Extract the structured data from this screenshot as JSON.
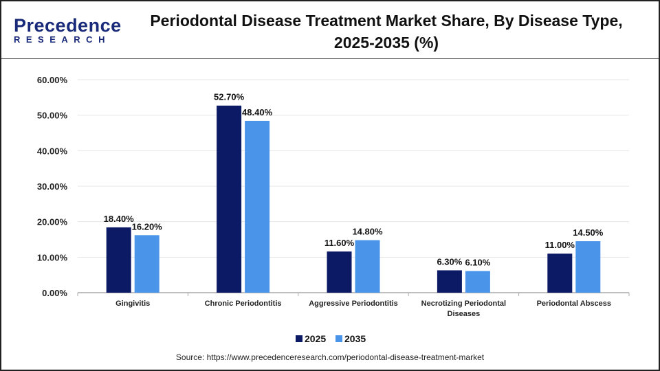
{
  "logo": {
    "line1": "Precedence",
    "line2": "RESEARCH"
  },
  "title": "Periodontal Disease Treatment Market Share, By Disease Type, 2025-2035 (%)",
  "source": "Source: https://www.precedenceresearch.com/periodontal-disease-treatment-market",
  "chart_data": {
    "type": "bar",
    "categories": [
      [
        "Gingivitis"
      ],
      [
        "Chronic Periodontitis"
      ],
      [
        "Aggressive Periodontitis"
      ],
      [
        "Necrotizing Periodontal",
        "Diseases"
      ],
      [
        "Periodontal Abscess"
      ]
    ],
    "series": [
      {
        "name": "2025",
        "color": "#0c1a66",
        "values": [
          18.4,
          52.7,
          11.6,
          6.3,
          11.0
        ],
        "labels": [
          "18.40%",
          "52.70%",
          "11.60%",
          "6.30%",
          "11.00%"
        ]
      },
      {
        "name": "2035",
        "color": "#4a94ea",
        "values": [
          16.2,
          48.4,
          14.8,
          6.1,
          14.5
        ],
        "labels": [
          "16.20%",
          "48.40%",
          "14.80%",
          "6.10%",
          "14.50%"
        ]
      }
    ],
    "ylim": [
      0,
      60
    ],
    "yticks": [
      "0.00%",
      "10.00%",
      "20.00%",
      "30.00%",
      "40.00%",
      "50.00%",
      "60.00%"
    ],
    "grid": true,
    "legend": "bottom"
  }
}
